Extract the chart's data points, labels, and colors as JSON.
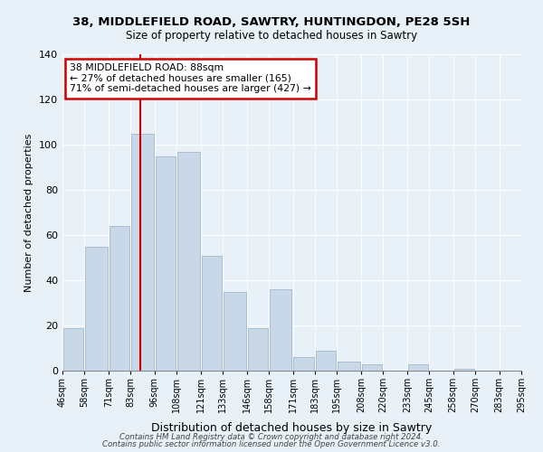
{
  "title": "38, MIDDLEFIELD ROAD, SAWTRY, HUNTINGDON, PE28 5SH",
  "subtitle": "Size of property relative to detached houses in Sawtry",
  "xlabel": "Distribution of detached houses by size in Sawtry",
  "ylabel": "Number of detached properties",
  "bar_color": "#c8d8e8",
  "bar_edge_color": "#a8bece",
  "vline_x": 88,
  "vline_color": "#cc0000",
  "bin_edges": [
    46,
    58,
    71,
    83,
    96,
    108,
    121,
    133,
    146,
    158,
    171,
    183,
    195,
    208,
    220,
    233,
    245,
    258,
    270,
    283,
    295
  ],
  "bin_labels": [
    "46sqm",
    "58sqm",
    "71sqm",
    "83sqm",
    "96sqm",
    "108sqm",
    "121sqm",
    "133sqm",
    "146sqm",
    "158sqm",
    "171sqm",
    "183sqm",
    "195sqm",
    "208sqm",
    "220sqm",
    "233sqm",
    "245sqm",
    "258sqm",
    "270sqm",
    "283sqm",
    "295sqm"
  ],
  "counts": [
    19,
    55,
    64,
    105,
    95,
    97,
    51,
    35,
    19,
    36,
    6,
    9,
    4,
    3,
    0,
    3,
    0,
    1,
    0,
    0
  ],
  "ylim": [
    0,
    140
  ],
  "yticks": [
    0,
    20,
    40,
    60,
    80,
    100,
    120,
    140
  ],
  "annotation_title": "38 MIDDLEFIELD ROAD: 88sqm",
  "annotation_line1": "← 27% of detached houses are smaller (165)",
  "annotation_line2": "71% of semi-detached houses are larger (427) →",
  "annotation_box_color": "#ffffff",
  "annotation_box_edge": "#cc0000",
  "footer1": "Contains HM Land Registry data © Crown copyright and database right 2024.",
  "footer2": "Contains public sector information licensed under the Open Government Licence v3.0.",
  "background_color": "#e8f0f8",
  "plot_background": "#e8f0f8"
}
